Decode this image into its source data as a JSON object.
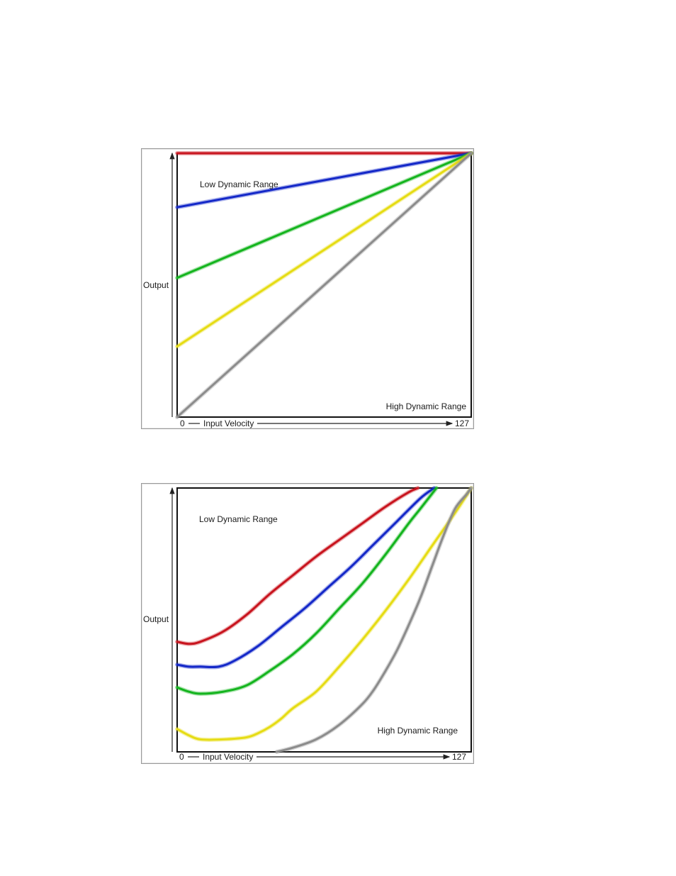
{
  "chart_data": [
    {
      "type": "line",
      "title": "",
      "xlabel": "Input Velocity",
      "ylabel": "Output",
      "x_tick_labels": [
        "0",
        "127"
      ],
      "xlim": [
        0,
        127
      ],
      "ylim": [
        0,
        127
      ],
      "grid": false,
      "annotations": [
        "Low Dynamic Range",
        "High Dynamic Range"
      ],
      "series": [
        {
          "color": "#c8141e",
          "x": [
            0,
            127
          ],
          "y": [
            127,
            127
          ]
        },
        {
          "color": "#1428c8",
          "x": [
            0,
            127
          ],
          "y": [
            101,
            127
          ]
        },
        {
          "color": "#14b41e",
          "x": [
            0,
            127
          ],
          "y": [
            67,
            127
          ]
        },
        {
          "color": "#e6dc14",
          "x": [
            0,
            127
          ],
          "y": [
            34,
            127
          ]
        },
        {
          "color": "#8c8c8c",
          "x": [
            0,
            127
          ],
          "y": [
            0,
            127
          ]
        }
      ]
    },
    {
      "type": "line",
      "title": "",
      "xlabel": "Input Velocity",
      "ylabel": "Output",
      "x_tick_labels": [
        "0",
        "127"
      ],
      "xlim": [
        0,
        127
      ],
      "ylim": [
        0,
        127
      ],
      "grid": false,
      "annotations": [
        "Low Dynamic Range",
        "High Dynamic Range"
      ],
      "series": [
        {
          "color": "#c8141e",
          "x": [
            0,
            5,
            10,
            20,
            30,
            40,
            50,
            60,
            70,
            80,
            90,
            100,
            104
          ],
          "y": [
            53,
            52,
            53,
            58,
            66,
            76,
            85,
            94,
            102,
            110,
            118,
            125,
            127
          ]
        },
        {
          "color": "#1428c8",
          "x": [
            0,
            5,
            10,
            18,
            25,
            35,
            45,
            55,
            65,
            75,
            85,
            95,
            105,
            111
          ],
          "y": [
            42,
            41,
            41,
            41,
            44,
            51,
            60,
            69,
            79,
            89,
            100,
            111,
            122,
            127
          ]
        },
        {
          "color": "#14b41e",
          "x": [
            0,
            5,
            10,
            20,
            30,
            40,
            50,
            60,
            70,
            80,
            90,
            100,
            105,
            112
          ],
          "y": [
            31,
            29,
            28,
            29,
            32,
            39,
            47,
            57,
            69,
            81,
            95,
            110,
            117,
            127
          ]
        },
        {
          "color": "#e6dc14",
          "x": [
            0,
            5,
            10,
            20,
            30,
            35,
            40,
            45,
            50,
            60,
            70,
            80,
            90,
            100,
            110,
            120,
            127
          ],
          "y": [
            11,
            8,
            6,
            6,
            7,
            9,
            12,
            16,
            21,
            29,
            41,
            54,
            68,
            83,
            99,
            115,
            127
          ]
        },
        {
          "color": "#8c8c8c",
          "x": [
            43,
            50,
            60,
            70,
            80,
            85,
            90,
            95,
            100,
            105,
            110,
            115,
            120,
            125,
            127
          ],
          "y": [
            0,
            2,
            6,
            13,
            23,
            30,
            39,
            49,
            61,
            74,
            89,
            104,
            117,
            124,
            127
          ]
        }
      ]
    }
  ]
}
